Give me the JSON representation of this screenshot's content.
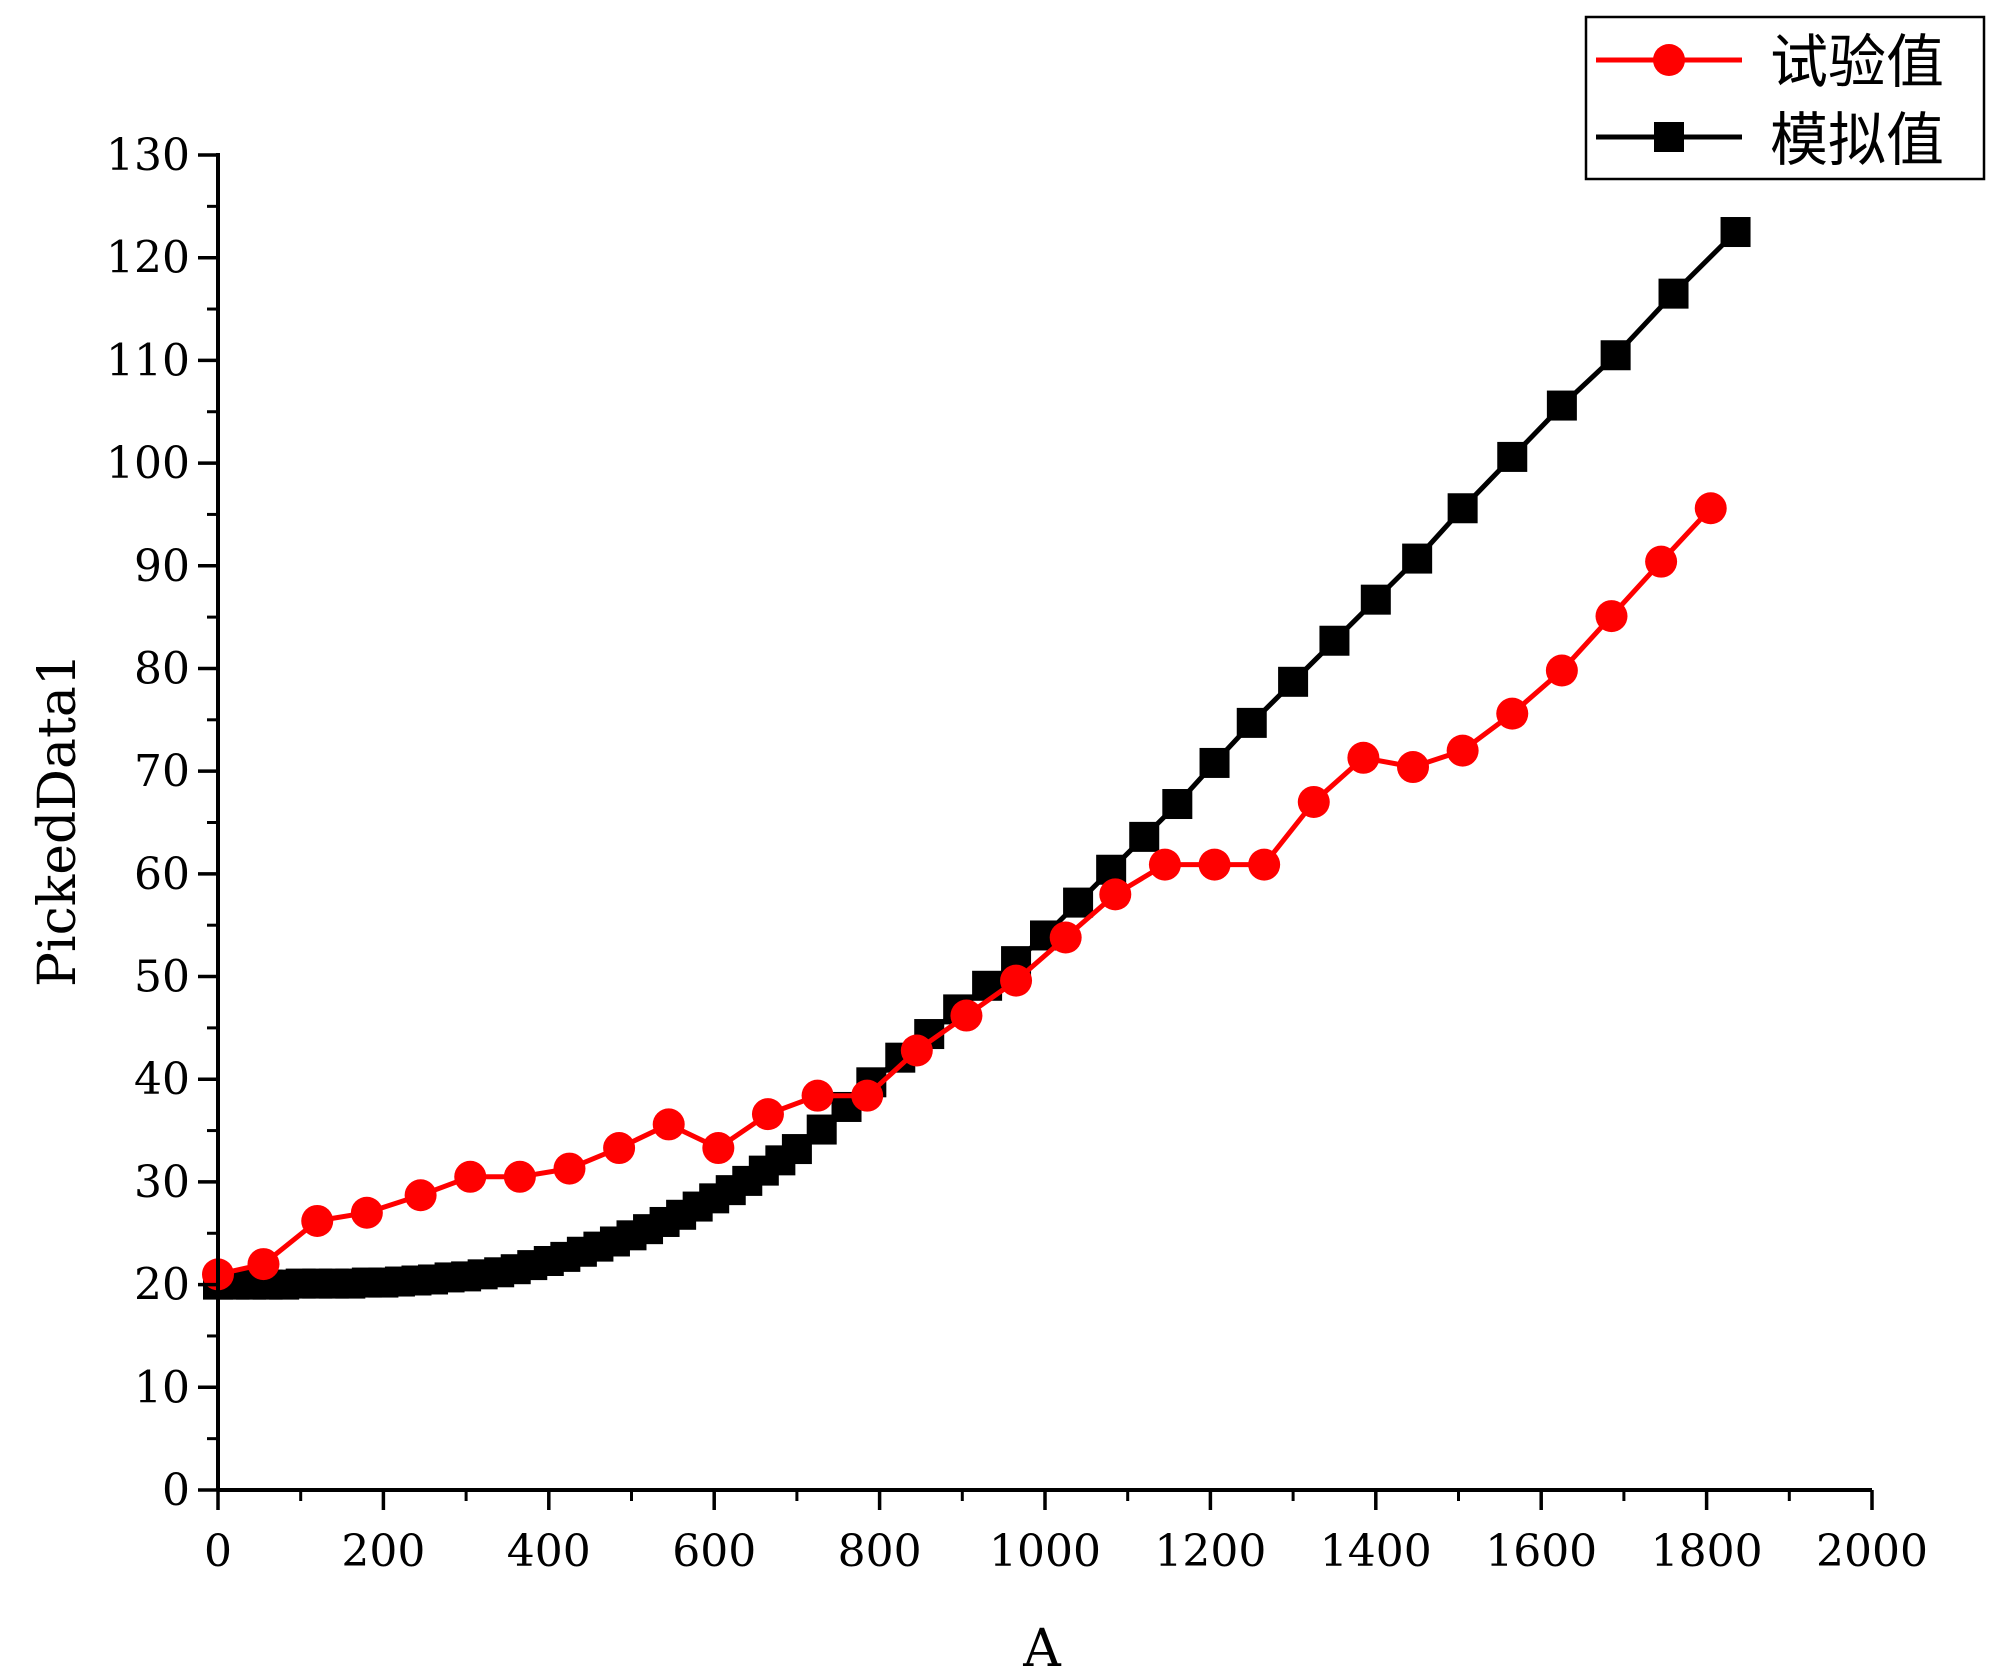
{
  "chart_data": {
    "type": "line",
    "title": "",
    "xlabel": "A",
    "ylabel": "PickedData1",
    "xlim": [
      0,
      2000
    ],
    "ylim": [
      0,
      130
    ],
    "xticks": [
      "0",
      "200",
      "400",
      "600",
      "800",
      "1000",
      "1200",
      "1400",
      "1600",
      "1800",
      "2000"
    ],
    "yticks": [
      "0",
      "10",
      "20",
      "30",
      "40",
      "50",
      "60",
      "70",
      "80",
      "90",
      "100",
      "110",
      "120",
      "130"
    ],
    "legend_position": "top-right",
    "series": [
      {
        "name": "试验值",
        "color": "#ff0000",
        "marker": "circle",
        "x": [
          0,
          55,
          120,
          180,
          245,
          305,
          365,
          425,
          485,
          545,
          605,
          665,
          725,
          785,
          845,
          905,
          965,
          1025,
          1085,
          1145,
          1205,
          1265,
          1325,
          1385,
          1445,
          1505,
          1565,
          1625,
          1685,
          1745,
          1805
        ],
        "y": [
          21,
          22,
          26.2,
          27,
          28.7,
          30.5,
          30.5,
          31.3,
          33.3,
          35.6,
          33.3,
          36.6,
          38.4,
          38.4,
          42.8,
          46.2,
          49.6,
          53.8,
          58,
          60.9,
          60.9,
          60.9,
          67,
          71.3,
          70.4,
          72,
          75.6,
          79.8,
          85.1,
          90.4,
          95.6
        ]
      },
      {
        "name": "模拟值",
        "color": "#000000",
        "marker": "square",
        "x": [
          0,
          20,
          40,
          60,
          80,
          100,
          120,
          140,
          160,
          180,
          200,
          220,
          240,
          260,
          280,
          300,
          320,
          340,
          360,
          380,
          400,
          420,
          440,
          460,
          480,
          500,
          520,
          540,
          560,
          580,
          600,
          620,
          640,
          660,
          680,
          700,
          730,
          760,
          790,
          825,
          860,
          895,
          930,
          965,
          1000,
          1040,
          1080,
          1120,
          1160,
          1205,
          1250,
          1300,
          1350,
          1400,
          1450,
          1505,
          1565,
          1625,
          1690,
          1760,
          1835
        ],
        "y": [
          20,
          20,
          20,
          20,
          20,
          20.1,
          20.1,
          20.1,
          20.1,
          20.2,
          20.2,
          20.3,
          20.4,
          20.5,
          20.7,
          20.8,
          21,
          21.2,
          21.5,
          21.9,
          22.3,
          22.7,
          23.2,
          23.7,
          24.2,
          24.8,
          25.4,
          26.1,
          26.8,
          27.6,
          28.4,
          29.2,
          30.1,
          31.1,
          32.1,
          33.2,
          35.1,
          37.3,
          39.7,
          42.1,
          44.4,
          46.8,
          49.1,
          51.5,
          54,
          57.2,
          60.4,
          63.6,
          66.8,
          70.8,
          74.7,
          78.7,
          82.7,
          86.7,
          90.7,
          95.6,
          100.6,
          105.6,
          110.5,
          116.5,
          122.5
        ]
      }
    ]
  }
}
